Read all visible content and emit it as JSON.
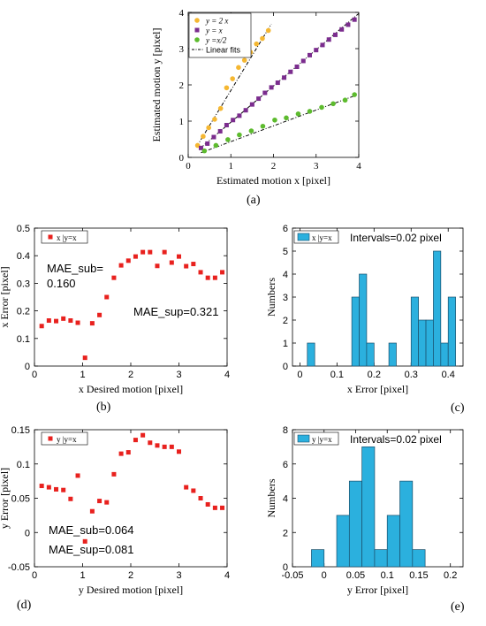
{
  "colors": {
    "orange": "#F5B731",
    "purple": "#7B2D8E",
    "green": "#5DBB2E",
    "red": "#E8211E",
    "histFill": "#2BB0DE",
    "histEdge": "#1A4F6B",
    "fitLine": "#000000"
  },
  "chart_data": [
    {
      "id": "a",
      "panel_label": "(a)",
      "type": "scatter",
      "xlabel": "Estimated motion  x [pixel]",
      "ylabel": "Estimated motion  y [pixel]",
      "xlim": [
        0,
        4
      ],
      "ylim": [
        0,
        4
      ],
      "xticks": [
        "0",
        "1",
        "2",
        "3",
        "4"
      ],
      "yticks": [
        "0",
        "1",
        "2",
        "3",
        "4"
      ],
      "legend": {
        "placement": "top-left",
        "entries": [
          "y =  2 x",
          "y = x",
          "y =x/2",
          "Linear fits"
        ]
      },
      "series": [
        {
          "name": "y =  2 x",
          "marker": "circle",
          "color": "orange",
          "x": [
            0.22,
            0.35,
            0.48,
            0.62,
            0.76,
            0.9,
            1.04,
            1.18,
            1.32,
            1.46,
            1.6,
            1.74,
            1.88
          ],
          "y": [
            0.33,
            0.58,
            0.82,
            1.05,
            1.35,
            1.92,
            2.17,
            2.48,
            2.68,
            2.9,
            3.13,
            3.28,
            3.5
          ]
        },
        {
          "name": "y = x",
          "marker": "square",
          "color": "purple",
          "x": [
            0.3,
            0.45,
            0.6,
            0.75,
            0.9,
            1.05,
            1.2,
            1.35,
            1.5,
            1.65,
            1.8,
            1.95,
            2.1,
            2.25,
            2.4,
            2.55,
            2.7,
            2.85,
            3.0,
            3.15,
            3.3,
            3.45,
            3.6,
            3.75,
            3.9
          ],
          "y": [
            0.26,
            0.38,
            0.56,
            0.72,
            0.89,
            1.03,
            1.15,
            1.3,
            1.46,
            1.62,
            1.78,
            1.93,
            2.06,
            2.2,
            2.36,
            2.5,
            2.66,
            2.82,
            2.96,
            3.1,
            3.25,
            3.38,
            3.53,
            3.66,
            3.8
          ]
        },
        {
          "name": "y =x/2",
          "marker": "circle",
          "color": "green",
          "x": [
            0.38,
            0.65,
            0.93,
            1.2,
            1.48,
            1.75,
            2.03,
            2.3,
            2.58,
            2.85,
            3.13,
            3.4,
            3.68,
            3.9
          ],
          "y": [
            0.18,
            0.33,
            0.49,
            0.62,
            0.73,
            0.86,
            1.03,
            1.09,
            1.2,
            1.27,
            1.38,
            1.48,
            1.58,
            1.73
          ]
        }
      ],
      "fits": [
        {
          "series": "y =  2 x",
          "x": [
            0.2,
            1.95
          ],
          "y": [
            0.3,
            3.68
          ]
        },
        {
          "series": "y = x",
          "x": [
            0.25,
            4.0
          ],
          "y": [
            0.22,
            3.97
          ]
        },
        {
          "series": "y =x/2",
          "x": [
            0.3,
            3.95
          ],
          "y": [
            0.13,
            1.72
          ]
        }
      ]
    },
    {
      "id": "b",
      "panel_label": "(b)",
      "type": "scatter",
      "xlabel": "x Desired motion [pixel]",
      "ylabel": "x Error [pixel]",
      "xlim": [
        0,
        4
      ],
      "ylim": [
        0,
        0.5
      ],
      "xticks": [
        "0",
        "1",
        "2",
        "3",
        "4"
      ],
      "yticks": [
        "0",
        "0.1",
        "0.2",
        "0.3",
        "0.4",
        "0.5"
      ],
      "legend": {
        "placement": "top-left",
        "entries": [
          "x |y=x"
        ]
      },
      "annotations": [
        "MAE_sub=",
        "0.160",
        "MAE_sup=0.321"
      ],
      "series": [
        {
          "name": "x |y=x",
          "marker": "square",
          "color": "red",
          "x": [
            0.15,
            0.3,
            0.45,
            0.6,
            0.75,
            0.9,
            1.05,
            1.2,
            1.35,
            1.5,
            1.65,
            1.8,
            1.95,
            2.1,
            2.25,
            2.4,
            2.55,
            2.7,
            2.85,
            3.0,
            3.15,
            3.3,
            3.45,
            3.6,
            3.75,
            3.9
          ],
          "y": [
            0.145,
            0.165,
            0.163,
            0.172,
            0.165,
            0.157,
            0.03,
            0.155,
            0.185,
            0.25,
            0.32,
            0.365,
            0.382,
            0.397,
            0.413,
            0.413,
            0.363,
            0.413,
            0.375,
            0.397,
            0.362,
            0.37,
            0.34,
            0.32,
            0.32,
            0.34
          ]
        }
      ]
    },
    {
      "id": "c",
      "panel_label": "(c)",
      "type": "bar",
      "xlabel": "x Error [pixel]",
      "ylabel": "Numbers",
      "xlim": [
        -0.02,
        0.44
      ],
      "ylim": [
        0,
        6
      ],
      "xticks": [
        "0",
        "0.1",
        "0.2",
        "0.3",
        "0.4"
      ],
      "yticks": [
        "0",
        "1",
        "2",
        "3",
        "4",
        "5",
        "6"
      ],
      "legend": {
        "placement": "top-left",
        "entries": [
          "x |y=x"
        ]
      },
      "annotations": [
        "Intervals=0.02 pixel"
      ],
      "bin_width": 0.02,
      "bin_starts": [
        0.02,
        0.14,
        0.16,
        0.18,
        0.24,
        0.3,
        0.32,
        0.34,
        0.36,
        0.38,
        0.4
      ],
      "counts": [
        1,
        3,
        4,
        1,
        1,
        3,
        2,
        2,
        5,
        1,
        3
      ]
    },
    {
      "id": "d",
      "panel_label": "(d)",
      "type": "scatter",
      "xlabel": "y Desired motion [pixel]",
      "ylabel": "y Error [pixel]",
      "xlim": [
        0,
        4
      ],
      "ylim": [
        -0.05,
        0.15
      ],
      "xticks": [
        "0",
        "1",
        "2",
        "3",
        "4"
      ],
      "yticks": [
        "-0.05",
        "0",
        "0.05",
        "0.1",
        "0.15"
      ],
      "legend": {
        "placement": "top-left",
        "entries": [
          "y |y=x"
        ]
      },
      "annotations": [
        "MAE_sub=0.064",
        "MAE_sup=0.081"
      ],
      "series": [
        {
          "name": "y |y=x",
          "marker": "square",
          "color": "red",
          "x": [
            0.15,
            0.3,
            0.45,
            0.6,
            0.75,
            0.9,
            1.05,
            1.2,
            1.35,
            1.5,
            1.65,
            1.8,
            1.95,
            2.1,
            2.25,
            2.4,
            2.55,
            2.7,
            2.85,
            3.0,
            3.15,
            3.3,
            3.45,
            3.6,
            3.75,
            3.9
          ],
          "y": [
            0.068,
            0.066,
            0.063,
            0.062,
            0.049,
            0.083,
            -0.013,
            0.031,
            0.046,
            0.044,
            0.085,
            0.115,
            0.117,
            0.135,
            0.142,
            0.131,
            0.127,
            0.125,
            0.125,
            0.118,
            0.066,
            0.061,
            0.05,
            0.041,
            0.036,
            0.036
          ]
        }
      ]
    },
    {
      "id": "e",
      "panel_label": "(e)",
      "type": "bar",
      "xlabel": "y Error [pixel]",
      "ylabel": "Numbers",
      "xlim": [
        -0.05,
        0.22
      ],
      "ylim": [
        0,
        8
      ],
      "xticks": [
        "-0.05",
        "0",
        "0.05",
        "0.1",
        "0.15",
        "0.2"
      ],
      "yticks": [
        "0",
        "2",
        "4",
        "6",
        "8"
      ],
      "legend": {
        "placement": "top-left",
        "entries": [
          "y |y=x"
        ]
      },
      "annotations": [
        "Intervals=0.02 pixel"
      ],
      "bin_width": 0.02,
      "bin_starts": [
        -0.02,
        0.02,
        0.04,
        0.06,
        0.08,
        0.1,
        0.12,
        0.14
      ],
      "counts": [
        1,
        3,
        5,
        7,
        1,
        3,
        5,
        1
      ]
    }
  ]
}
